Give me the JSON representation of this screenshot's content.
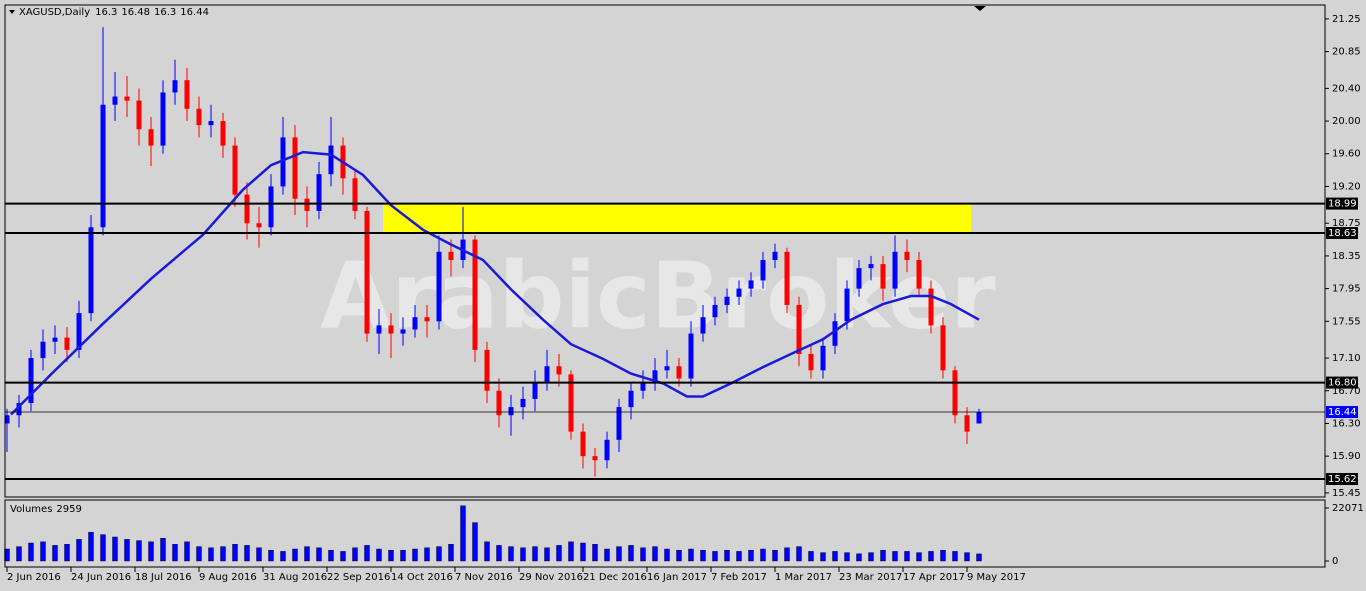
{
  "chart_data": {
    "type": "candlestick",
    "title": "XAGUSD,Daily",
    "watermark": "ArabicBroker",
    "x": [
      0,
      3,
      6,
      9,
      12,
      15,
      18,
      21,
      24,
      27,
      30,
      33,
      36,
      39,
      42,
      45,
      48,
      51,
      54,
      57,
      60,
      63,
      66,
      69,
      72,
      75,
      78,
      81,
      84,
      87,
      90,
      93,
      96,
      99,
      102,
      105,
      108,
      111,
      114,
      117,
      120,
      123,
      126,
      129,
      132,
      135,
      138,
      141,
      144,
      147,
      150,
      153,
      156,
      159,
      162,
      165,
      168,
      171,
      174,
      177,
      180,
      183,
      186,
      189,
      192,
      195,
      198,
      201,
      204,
      207,
      210,
      213,
      216,
      219,
      222,
      225,
      228,
      231,
      234,
      237,
      240,
      243
    ],
    "open": [
      16.3,
      16.4,
      16.55,
      17.1,
      17.3,
      17.35,
      17.2,
      17.65,
      18.7,
      20.2,
      20.3,
      20.25,
      19.9,
      19.7,
      20.35,
      20.5,
      20.15,
      19.95,
      20.0,
      19.7,
      19.1,
      18.75,
      18.7,
      19.2,
      19.8,
      19.05,
      18.9,
      19.35,
      19.7,
      19.3,
      18.9,
      17.4,
      17.5,
      17.4,
      17.45,
      17.6,
      17.55,
      18.4,
      18.3,
      18.55,
      17.2,
      16.7,
      16.4,
      16.5,
      16.6,
      16.8,
      17.0,
      16.9,
      16.2,
      15.9,
      15.85,
      16.1,
      16.5,
      16.7,
      16.8,
      16.95,
      17.0,
      16.85,
      17.4,
      17.6,
      17.75,
      17.85,
      17.95,
      18.05,
      18.3,
      18.4,
      17.75,
      17.15,
      16.95,
      17.25,
      17.55,
      17.95,
      18.2,
      18.25,
      17.95,
      18.4,
      18.3,
      17.95,
      17.5,
      16.95,
      16.4,
      16.3
    ],
    "high": [
      16.48,
      16.65,
      17.2,
      17.45,
      17.5,
      17.48,
      17.8,
      18.85,
      21.15,
      20.6,
      20.55,
      20.4,
      20.05,
      20.5,
      20.75,
      20.65,
      20.3,
      20.2,
      20.1,
      19.8,
      19.25,
      18.95,
      19.35,
      20.05,
      19.95,
      19.2,
      19.5,
      20.05,
      19.8,
      19.4,
      18.95,
      17.7,
      17.65,
      17.6,
      17.75,
      17.75,
      18.6,
      18.55,
      18.95,
      18.6,
      17.3,
      16.85,
      16.65,
      16.75,
      16.95,
      17.2,
      17.15,
      16.95,
      16.3,
      16.0,
      16.2,
      16.6,
      16.8,
      16.95,
      17.1,
      17.2,
      17.1,
      17.55,
      17.75,
      17.85,
      17.95,
      18.05,
      18.15,
      18.4,
      18.5,
      18.45,
      17.85,
      17.25,
      17.35,
      17.65,
      18.05,
      18.3,
      18.35,
      18.35,
      18.6,
      18.55,
      18.4,
      18.05,
      17.6,
      17.0,
      16.5,
      16.48
    ],
    "low": [
      15.95,
      16.25,
      16.45,
      16.95,
      17.15,
      17.05,
      17.1,
      17.55,
      18.6,
      20.0,
      20.05,
      19.7,
      19.45,
      19.6,
      20.2,
      20.0,
      19.8,
      19.8,
      19.55,
      18.95,
      18.55,
      18.45,
      18.6,
      19.1,
      18.85,
      18.7,
      18.8,
      19.2,
      19.1,
      18.8,
      17.3,
      17.15,
      17.1,
      17.25,
      17.35,
      17.35,
      17.45,
      18.1,
      18.2,
      17.05,
      16.55,
      16.25,
      16.15,
      16.35,
      16.45,
      16.7,
      16.75,
      16.1,
      15.75,
      15.65,
      15.75,
      15.95,
      16.35,
      16.6,
      16.7,
      16.85,
      16.75,
      16.75,
      17.3,
      17.5,
      17.65,
      17.75,
      17.85,
      17.95,
      18.2,
      17.65,
      17.0,
      16.85,
      16.85,
      17.15,
      17.45,
      17.85,
      18.05,
      17.8,
      17.85,
      18.15,
      17.85,
      17.4,
      16.85,
      16.3,
      16.05,
      16.3
    ],
    "close": [
      16.4,
      16.55,
      17.1,
      17.3,
      17.35,
      17.2,
      17.65,
      18.7,
      20.2,
      20.3,
      20.25,
      19.9,
      19.7,
      20.35,
      20.5,
      20.15,
      19.95,
      20.0,
      19.7,
      19.1,
      18.75,
      18.7,
      19.2,
      19.8,
      19.05,
      18.9,
      19.35,
      19.7,
      19.3,
      18.9,
      17.4,
      17.5,
      17.4,
      17.45,
      17.6,
      17.55,
      18.4,
      18.3,
      18.55,
      17.2,
      16.7,
      16.4,
      16.5,
      16.6,
      16.8,
      17.0,
      16.9,
      16.2,
      15.9,
      15.85,
      16.1,
      16.5,
      16.7,
      16.8,
      16.95,
      17.0,
      16.85,
      17.4,
      17.6,
      17.75,
      17.85,
      17.95,
      18.05,
      18.3,
      18.4,
      17.75,
      17.15,
      16.95,
      17.25,
      17.55,
      17.95,
      18.2,
      18.25,
      17.95,
      18.4,
      18.3,
      17.95,
      17.5,
      16.95,
      16.4,
      16.2,
      16.44
    ],
    "up_color": "#0000ff",
    "down_color": "#ff0000",
    "ma": {
      "color": "#1a1adb",
      "x": [
        1,
        11,
        24,
        36,
        49,
        59,
        66,
        74,
        81,
        89,
        96,
        104,
        111,
        119,
        126,
        134,
        141,
        149,
        156,
        164,
        170,
        174,
        181,
        189,
        196,
        204,
        211,
        219,
        226,
        231,
        236,
        243
      ],
      "values": [
        16.41,
        16.9,
        17.52,
        18.07,
        18.61,
        19.16,
        19.46,
        19.62,
        19.59,
        19.34,
        18.97,
        18.67,
        18.49,
        18.3,
        17.94,
        17.57,
        17.27,
        17.09,
        16.91,
        16.79,
        16.63,
        16.63,
        16.79,
        16.99,
        17.15,
        17.33,
        17.57,
        17.76,
        17.86,
        17.86,
        17.76,
        17.57
      ]
    },
    "levels": [
      18.99,
      18.63,
      {
        "value": 16.8,
        "label": "16.80"
      },
      15.62
    ],
    "level_color": "#000000",
    "price_color": "#0000ff",
    "zone_x": [
      94,
      241
    ],
    "zone_color": "#ffff00",
    "xlim": [
      -0.5,
      329.5
    ],
    "ylim": [
      15.4,
      21.42
    ],
    "yticks": [
      21.25,
      20.85,
      {
        "value": 20.4,
        "label": "20.40"
      },
      {
        "value": 20,
        "label": "20.00"
      },
      {
        "value": 19.6,
        "label": "19.60"
      },
      {
        "value": 19.2,
        "label": "19.20"
      },
      18.75,
      18.35,
      17.95,
      17.55,
      {
        "value": 17.1,
        "label": "17.10"
      },
      {
        "value": 16.7,
        "label": "16.70"
      },
      {
        "value": 16.3,
        "label": "16.30"
      },
      {
        "value": 15.9,
        "label": "15.90"
      },
      15.45
    ],
    "xticks": [
      {
        "value": 0,
        "label": "2 Jun 2016"
      },
      {
        "value": 16,
        "label": "24 Jun 2016"
      },
      {
        "value": 32,
        "label": "18 Jul 2016"
      },
      {
        "value": 48,
        "label": "9 Aug 2016"
      },
      {
        "value": 64,
        "label": "31 Aug 2016"
      },
      {
        "value": 80,
        "label": "22 Sep 2016"
      },
      {
        "value": 96,
        "label": "14 Oct 2016"
      },
      {
        "value": 112,
        "label": "7 Nov 2016"
      },
      {
        "value": 128,
        "label": "29 Nov 2016"
      },
      {
        "value": 144,
        "label": "21 Dec 2016"
      },
      {
        "value": 160,
        "label": "16 Jan 2017"
      },
      {
        "value": 176,
        "label": "7 Feb 2017"
      },
      {
        "value": 192,
        "label": "1 Mar 2017"
      },
      {
        "value": 208,
        "label": "23 Mar 2017"
      },
      {
        "value": 224,
        "label": "17 Apr 2017"
      },
      {
        "value": 240,
        "label": "9 May 2017"
      }
    ],
    "volume": {
      "title": "Volumes",
      "color": "#0000ff",
      "values": [
        5000,
        6000,
        7500,
        8000,
        6500,
        7000,
        9000,
        12000,
        11000,
        10000,
        9000,
        8500,
        8000,
        9500,
        7000,
        8000,
        6000,
        5500,
        6000,
        7000,
        6500,
        5500,
        4500,
        4000,
        5000,
        6000,
        5500,
        4500,
        4000,
        5500,
        6500,
        5000,
        4500,
        4500,
        5000,
        5500,
        6000,
        7000,
        23000,
        16000,
        8000,
        6500,
        6000,
        5500,
        6000,
        5500,
        6500,
        8000,
        7500,
        7000,
        5000,
        6000,
        6500,
        5500,
        6000,
        5000,
        4500,
        5000,
        4500,
        4000,
        4500,
        4000,
        4500,
        5000,
        4500,
        5500,
        6000,
        4000,
        3500,
        4000,
        3500,
        3000,
        3500,
        4500,
        4000,
        4000,
        3500,
        4000,
        4500,
        4000,
        3500,
        2959
      ],
      "ylim": [
        0,
        25400
      ],
      "yticks": [
        22071,
        0
      ]
    }
  }
}
